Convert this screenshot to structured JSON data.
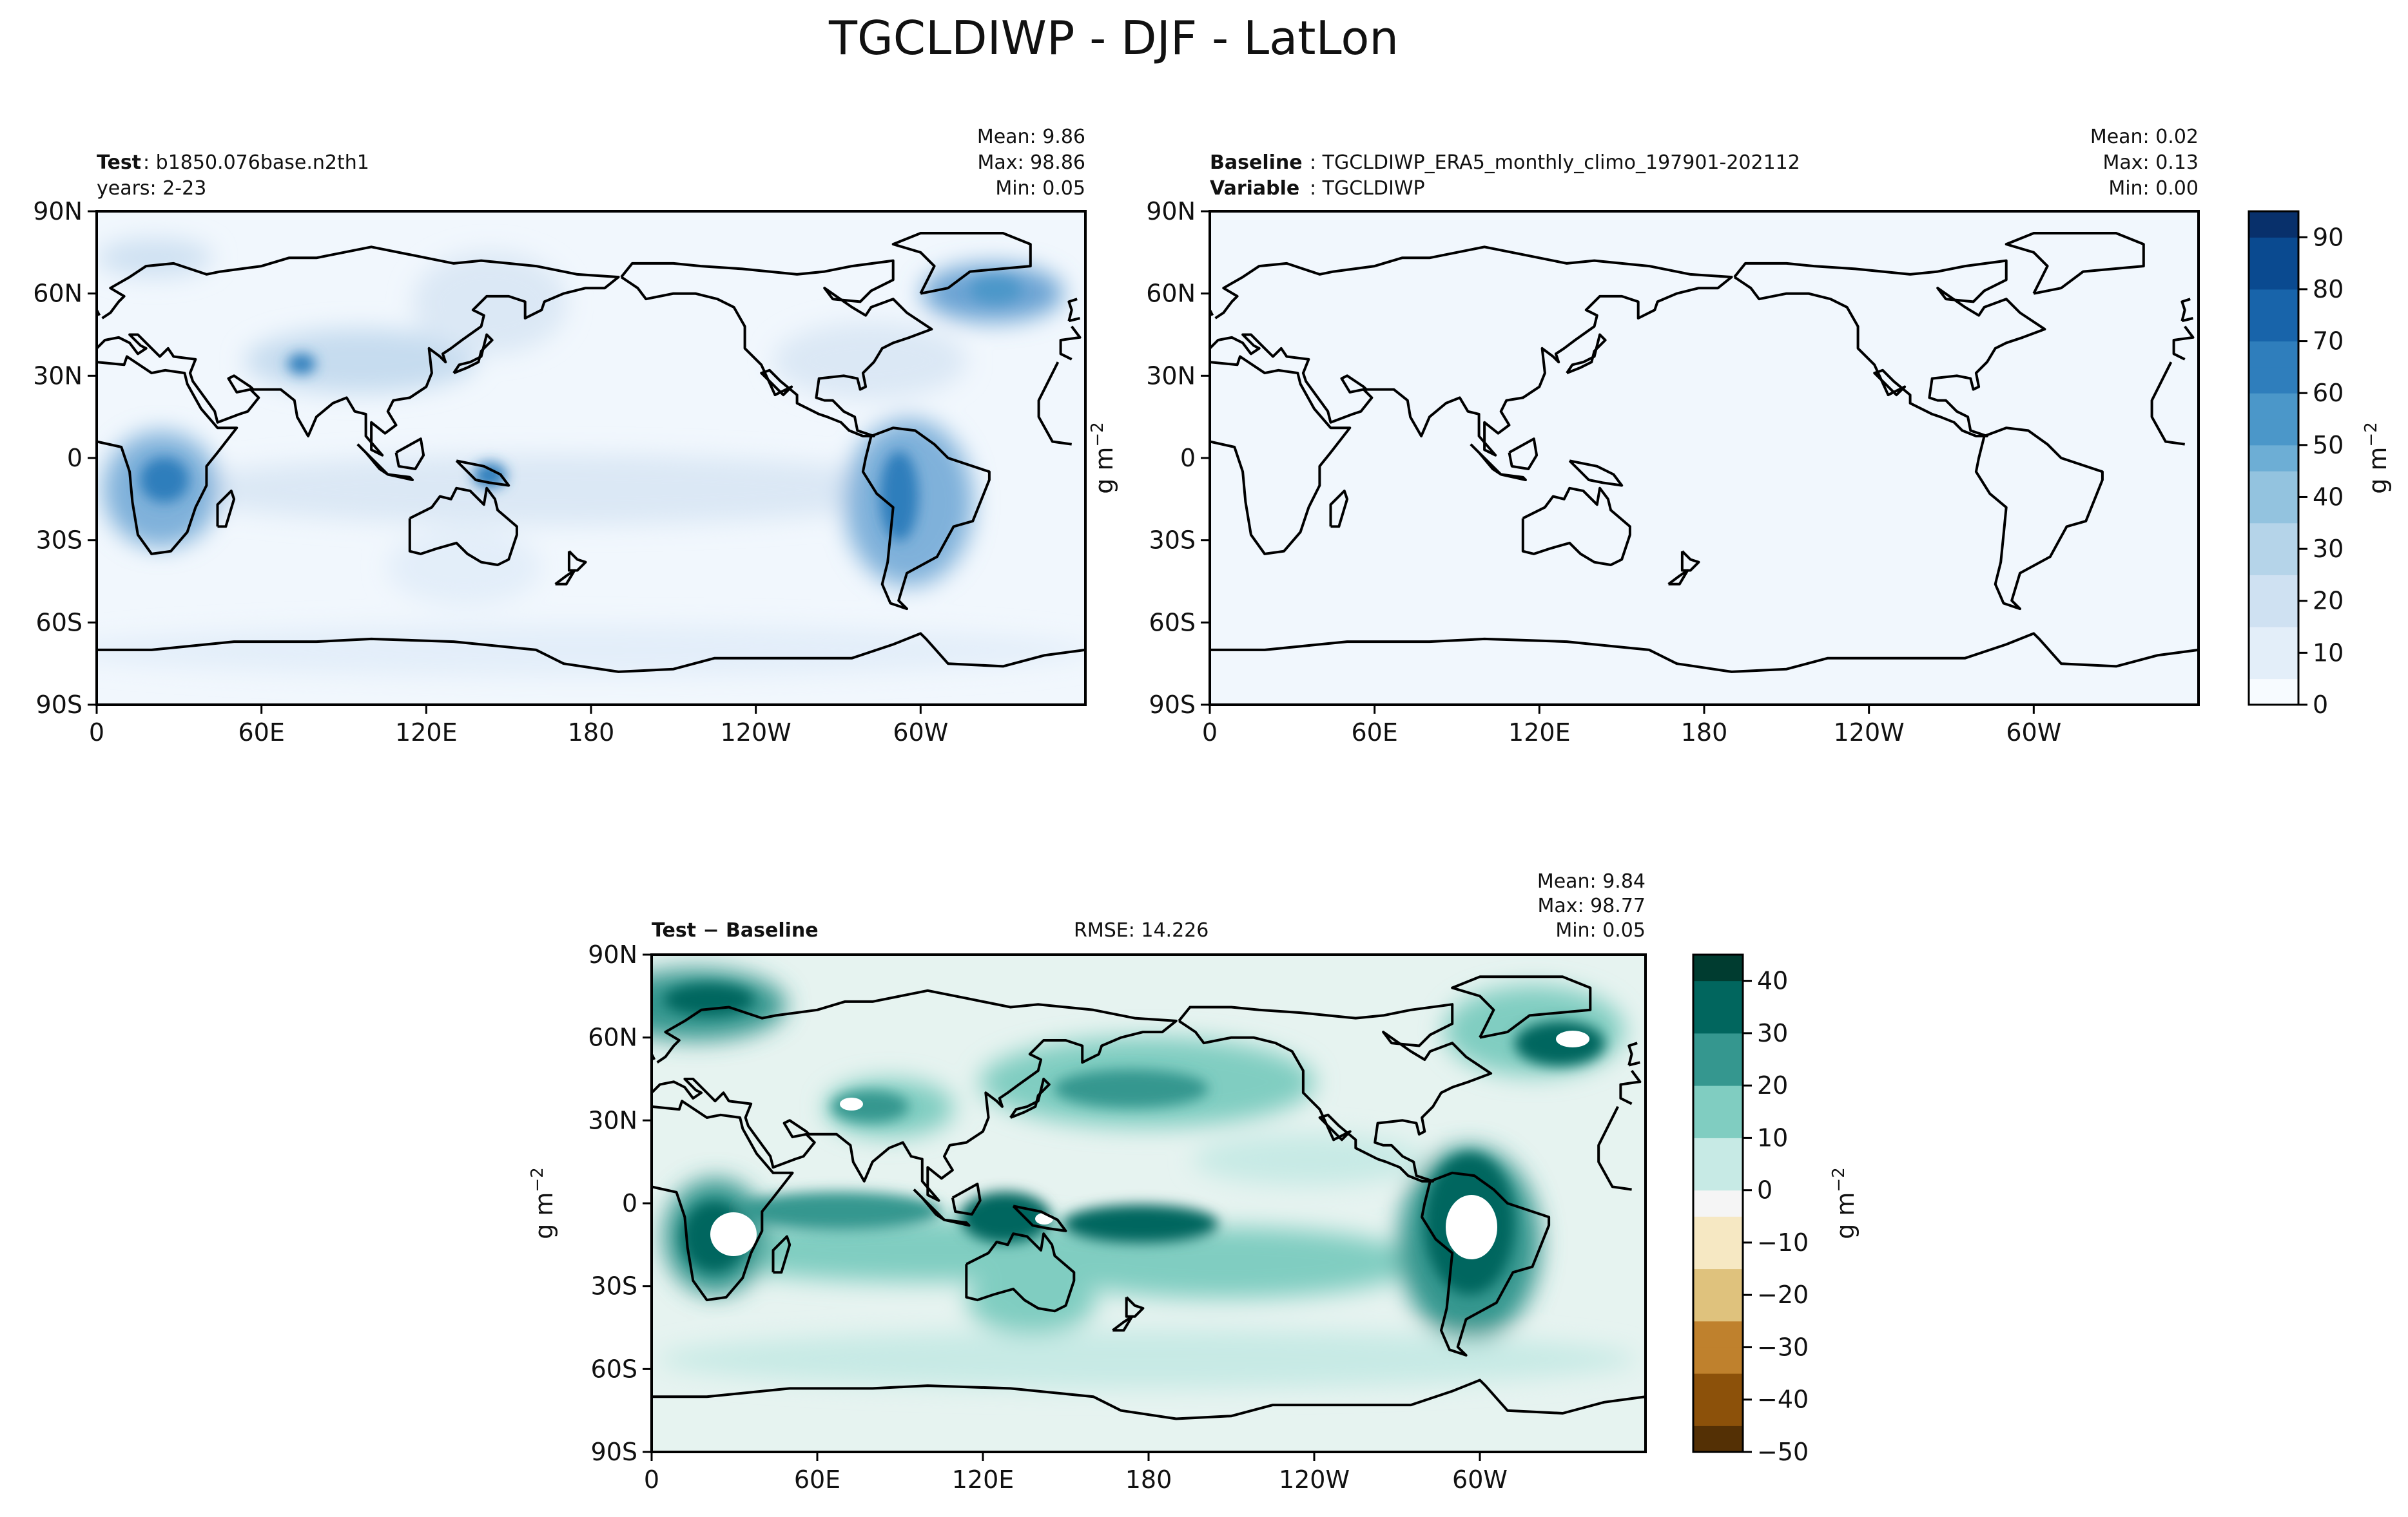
{
  "title": "TGCLDIWP - DJF - LatLon",
  "colors": {
    "ocean_base": "#f1f7fd",
    "coast": "#000000",
    "blues": [
      "#f7fbff",
      "#e3eef9",
      "#cfe1f2",
      "#b5d4e9",
      "#93c3df",
      "#6daed5",
      "#4b97c9",
      "#2f7ebc",
      "#1864aa",
      "#0a4a90",
      "#08306b"
    ],
    "diverging": [
      "#543005",
      "#8c510a",
      "#bf812d",
      "#dfc27d",
      "#f6e8c3",
      "#f5f5f5",
      "#c7eae5",
      "#80cdc1",
      "#35978f",
      "#01665e",
      "#003c30"
    ]
  },
  "chart_data": [
    {
      "type": "heatmap",
      "panel": "test",
      "label_key": "Test",
      "label_value": "b1850.076base.n2th1",
      "label2": "years: 2-23",
      "stats": {
        "mean": "Mean:  9.86",
        "max": "Max: 98.86",
        "min": "Min:  0.05"
      },
      "xticks": [
        "0",
        "60E",
        "120E",
        "180",
        "120W",
        "60W"
      ],
      "yticks": [
        "90N",
        "60N",
        "30N",
        "0",
        "30S",
        "60S",
        "90S"
      ],
      "xlim": [
        0,
        360
      ],
      "ylim": [
        -90,
        90
      ]
    },
    {
      "type": "heatmap",
      "panel": "baseline",
      "label_key": "Baseline",
      "label_value": "TGCLDIWP_ERA5_monthly_climo_197901-202112",
      "label2_key": "Variable",
      "label2_value": "TGCLDIWP",
      "stats": {
        "mean": "Mean:  0.02",
        "max": "Max:  0.13",
        "min": "Min:  0.00"
      },
      "ylabel": "g m$^{-2}$",
      "xticks": [
        "0",
        "60E",
        "120E",
        "180",
        "120W",
        "60W"
      ],
      "yticks": [
        "90N",
        "60N",
        "30N",
        "0",
        "30S",
        "60S",
        "90S"
      ],
      "colorbar": {
        "ticks": [
          "0",
          "10",
          "20",
          "30",
          "40",
          "50",
          "60",
          "70",
          "80",
          "90"
        ],
        "range": [
          0,
          95
        ],
        "label": "g m$^{-2}$"
      }
    },
    {
      "type": "heatmap",
      "panel": "difference",
      "label_key": "Test − Baseline",
      "rmse": "RMSE: 14.226",
      "stats": {
        "mean": "Mean:  9.84",
        "max": "Max: 98.77",
        "min": "Min:  0.05"
      },
      "ylabel": "g m$^{-2}$",
      "xticks": [
        "0",
        "60E",
        "120E",
        "180",
        "120W",
        "60W"
      ],
      "yticks": [
        "90N",
        "60N",
        "30N",
        "0",
        "30S",
        "60S",
        "90S"
      ],
      "colorbar": {
        "ticks": [
          "40",
          "30",
          "20",
          "10",
          "0",
          "−10",
          "−20",
          "−30",
          "−40",
          "−50"
        ],
        "range": [
          -50,
          45
        ],
        "label": "g m$^{-2}$"
      }
    }
  ]
}
